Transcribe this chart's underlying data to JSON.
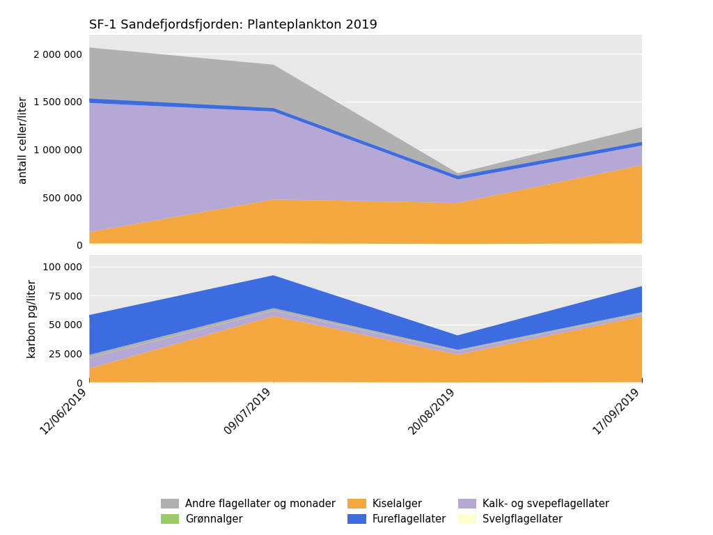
{
  "title": "SF-1 Sandefjordsfjorden: Planteplankton 2019",
  "dates": [
    "12/06/2019",
    "09/07/2019",
    "20/08/2019",
    "17/09/2019"
  ],
  "top": {
    "ylabel": "antall celler/liter",
    "ylim": [
      0,
      2200000
    ],
    "yticks": [
      0,
      500000,
      1000000,
      1500000,
      2000000
    ],
    "series": {
      "Svelgflagellater": [
        20000,
        20000,
        15000,
        20000
      ],
      "Kiselalger": [
        120000,
        460000,
        430000,
        820000
      ],
      "Kalk- og svepeflagellater": [
        1350000,
        920000,
        245000,
        205000
      ],
      "Fureflagellater": [
        30000,
        20000,
        20000,
        20000
      ],
      "Grønnalger": [
        5000,
        5000,
        3000,
        5000
      ],
      "Andre flagellater og monader": [
        550000,
        470000,
        45000,
        170000
      ]
    }
  },
  "bottom": {
    "ylabel": "karbon pg/liter",
    "ylim": [
      0,
      110000
    ],
    "yticks": [
      0,
      25000,
      50000,
      75000,
      100000
    ],
    "series": {
      "Svelgflagellater": [
        500,
        700,
        400,
        600
      ],
      "Kiselalger": [
        12000,
        57000,
        24000,
        57000
      ],
      "Kalk- og svepeflagellater": [
        9000,
        4500,
        3000,
        2000
      ],
      "Grønnalger": [
        200,
        300,
        200,
        300
      ],
      "Andre flagellater og monader": [
        2500,
        2000,
        1000,
        1200
      ],
      "Fureflagellater": [
        33000,
        27000,
        11000,
        21000
      ]
    }
  },
  "colors": {
    "Svelgflagellater": "#ffffcc",
    "Kiselalger": "#f5a742",
    "Kalk- og svepeflagellater": "#b5a8d5",
    "Fureflagellater": "#3d6be0",
    "Grønnalger": "#99cc66",
    "Andre flagellater og monader": "#b0b0b0"
  },
  "top_stack_order": [
    "Svelgflagellater",
    "Kiselalger",
    "Kalk- og svepeflagellater",
    "Andre flagellater og monader"
  ],
  "bottom_stack_order": [
    "Svelgflagellater",
    "Kiselalger",
    "Kalk- og svepeflagellater",
    "Grønnalger",
    "Andre flagellater og monader",
    "Fureflagellater"
  ],
  "line_color": "#3d6be0",
  "bg_color": "#e8e8e8",
  "fig_bg": "#ffffff",
  "legend_order": [
    "Andre flagellater og monader",
    "Grønnalger",
    "Kiselalger",
    "Fureflagellater",
    "Kalk- og svepeflagellater",
    "Svelgflagellater"
  ]
}
